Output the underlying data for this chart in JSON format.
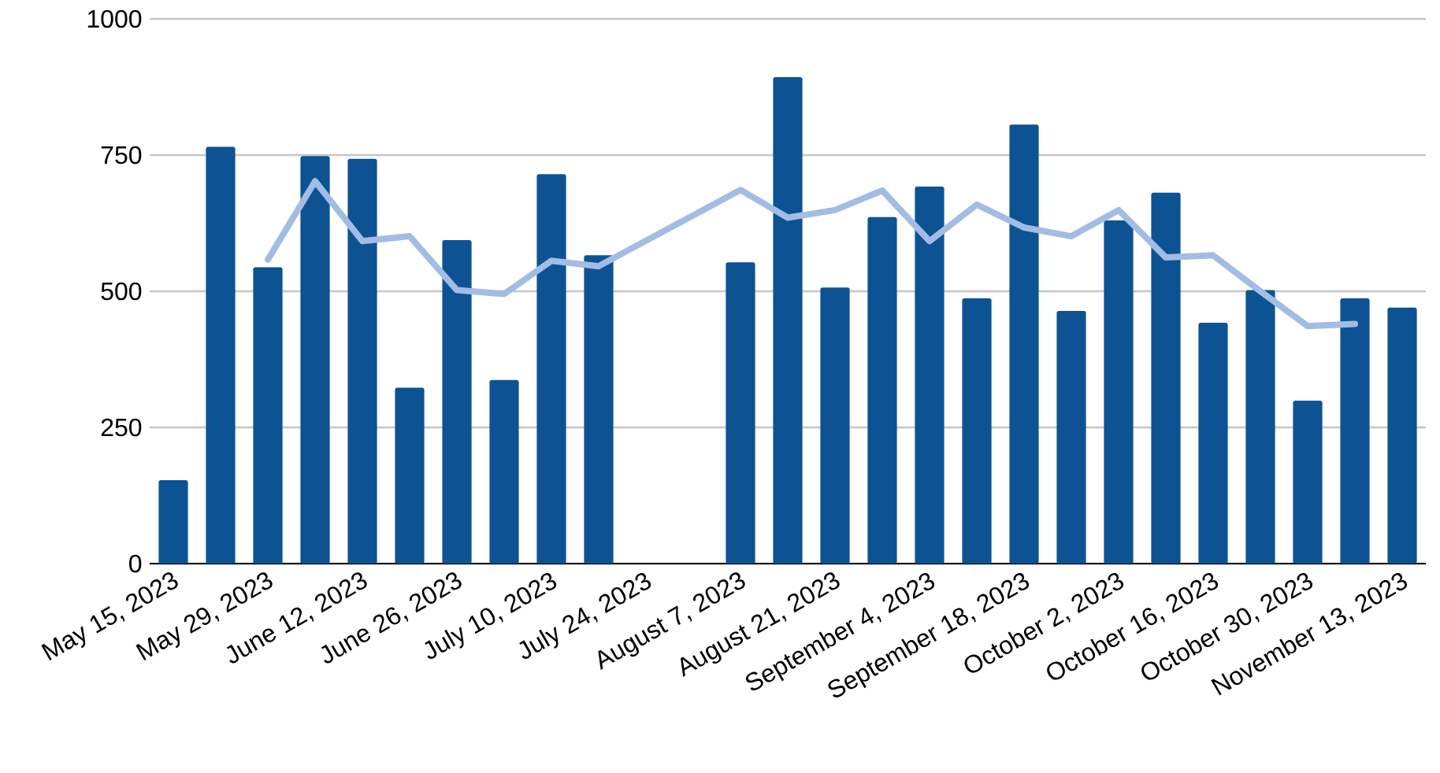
{
  "chart_data": {
    "type": "bar",
    "categories": [
      "May 15, 2023",
      null,
      "May 29, 2023",
      null,
      "June 12, 2023",
      null,
      "June 26, 2023",
      null,
      "July 10, 2023",
      null,
      "July 24, 2023",
      null,
      "August 7, 2023",
      null,
      "August 21, 2023",
      null,
      "September 4, 2023",
      null,
      "September 18, 2023",
      null,
      "October 2, 2023",
      null,
      "October 16, 2023",
      null,
      "October 30, 2023",
      null,
      "November 13, 2023"
    ],
    "series": [
      {
        "color": "#0d5394",
        "values": [
          153,
          765,
          544,
          748,
          743,
          323,
          594,
          337,
          715,
          566,
          null,
          null,
          553,
          893,
          507,
          636,
          692,
          487,
          806,
          464,
          630,
          681,
          442,
          502,
          299,
          487,
          470
        ]
      },
      {
        "type": "line",
        "color": "#a3bce4",
        "values": [
          null,
          null,
          558,
          702,
          592,
          601,
          502,
          495,
          556,
          546,
          null,
          null,
          686,
          635,
          649,
          685,
          592,
          659,
          617,
          601,
          649,
          562,
          566,
          500,
          436,
          440,
          null
        ]
      }
    ],
    "ylim": [
      0,
      1000
    ],
    "yticks": [
      0,
      250,
      500,
      750,
      1000
    ],
    "grid": "y"
  }
}
